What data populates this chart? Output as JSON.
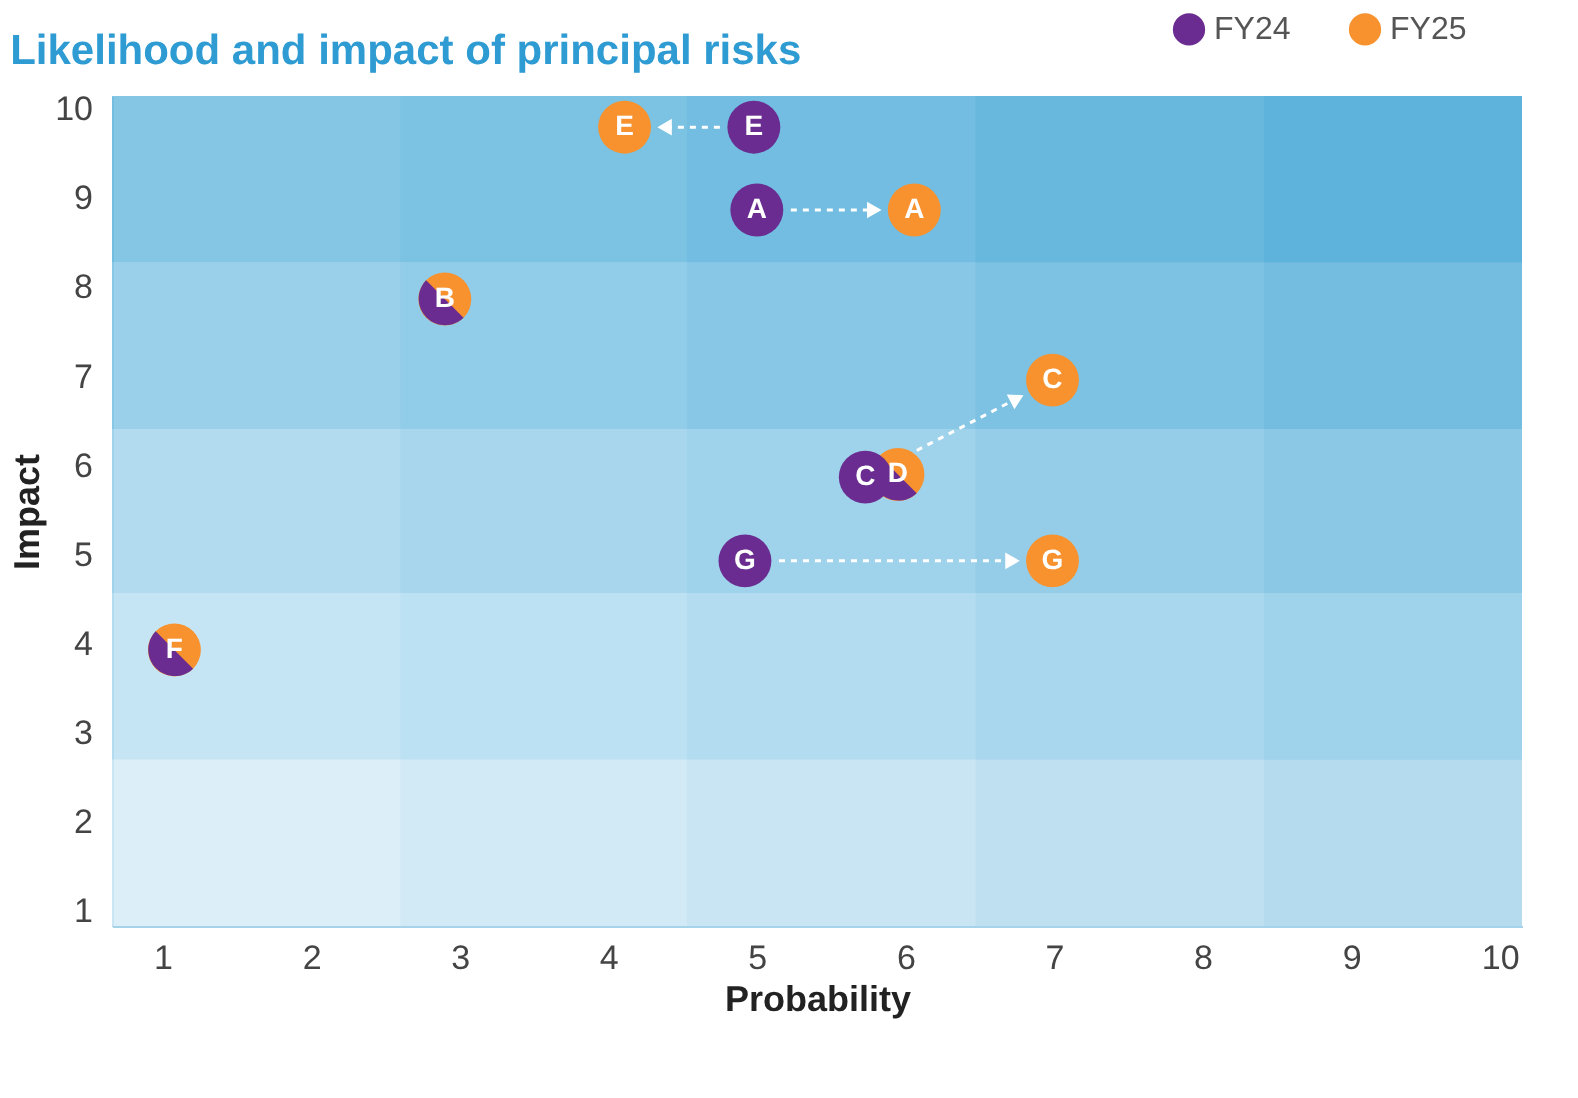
{
  "chart_data": {
    "type": "scatter",
    "title": "Likelihood and impact of principal risks",
    "xlabel": "Probability",
    "ylabel": "Impact",
    "xlim": [
      0.66,
      10.15
    ],
    "ylim": [
      0.83,
      10.15
    ],
    "xticks": [
      1,
      2,
      3,
      4,
      5,
      6,
      7,
      8,
      9,
      10
    ],
    "yticks": [
      1,
      2,
      3,
      4,
      5,
      6,
      7,
      8,
      9,
      10
    ],
    "grid": false,
    "legend": "top right",
    "marker": "circle",
    "data_labels": false,
    "series": [
      {
        "name": "FY24",
        "color": "#6a2c91",
        "x": [
          5.0,
          2.9,
          5.73,
          5.95,
          4.98,
          1.08,
          4.92
        ],
        "values": [
          8.87,
          7.87,
          5.87,
          5.9,
          9.8,
          3.93,
          4.93
        ],
        "value_labels": [
          "A",
          "B",
          "C",
          "D",
          "E",
          "F",
          "G"
        ]
      },
      {
        "name": "FY25",
        "color": "#f7922f",
        "x": [
          6.06,
          2.9,
          6.99,
          5.95,
          4.11,
          1.08,
          6.99
        ],
        "values": [
          8.87,
          7.87,
          6.96,
          5.9,
          9.8,
          3.93,
          4.93
        ],
        "value_labels": [
          "A",
          null,
          "C",
          null,
          "E",
          null,
          "G"
        ]
      }
    ],
    "bands": [
      {
        "axis": "x",
        "from": 0.66,
        "to": 2.6,
        "color": "#d3eaf6"
      },
      {
        "axis": "x",
        "from": 2.6,
        "to": 4.53,
        "color": "#acd8ee"
      },
      {
        "axis": "x",
        "from": 4.53,
        "to": 6.47,
        "color": "#86c6e6"
      },
      {
        "axis": "x",
        "from": 6.47,
        "to": 8.41,
        "color": "#5db2dc"
      },
      {
        "axis": "x",
        "from": 8.41,
        "to": 10.15,
        "color": "#35a0d3"
      },
      {
        "axis": "y",
        "from": 0.83,
        "to": 2.7,
        "color": "#d3eaf6"
      },
      {
        "axis": "y",
        "from": 2.7,
        "to": 4.57,
        "color": "#acd8ee"
      },
      {
        "axis": "y",
        "from": 4.57,
        "to": 6.41,
        "color": "#86c6e6"
      },
      {
        "axis": "y",
        "from": 6.41,
        "to": 8.28,
        "color": "#5db2dc"
      },
      {
        "axis": "y",
        "from": 8.28,
        "to": 10.15,
        "color": "#35a0d3"
      }
    ]
  }
}
